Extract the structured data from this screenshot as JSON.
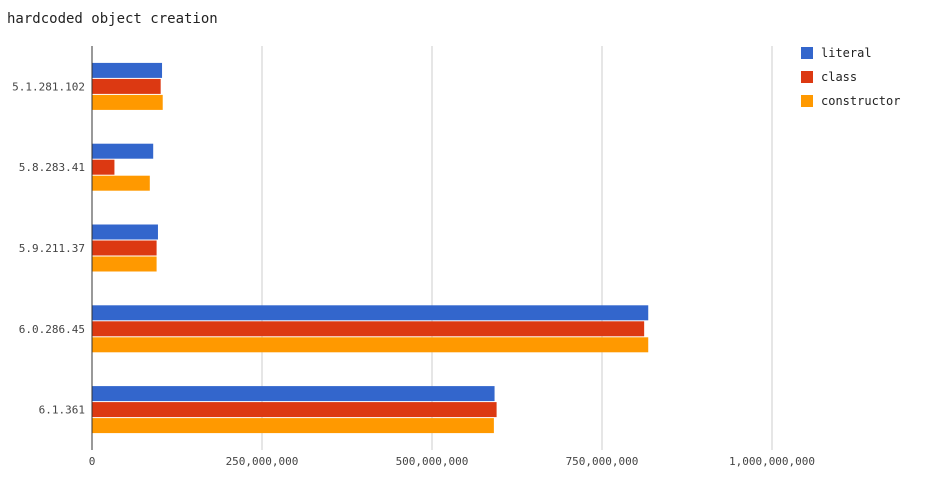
{
  "chart_data": {
    "type": "bar",
    "orientation": "horizontal",
    "title": "hardcoded object creation",
    "categories": [
      "5.1.281.102",
      "5.8.283.41",
      "5.9.211.37",
      "6.0.286.45",
      "6.1.361"
    ],
    "series": [
      {
        "name": "literal",
        "color": "#3366cc",
        "values": [
          103000000,
          90000000,
          97000000,
          818000000,
          592000000
        ]
      },
      {
        "name": "class",
        "color": "#dc3912",
        "values": [
          101000000,
          33000000,
          95000000,
          812000000,
          595000000
        ]
      },
      {
        "name": "constructor",
        "color": "#ff9900",
        "values": [
          104000000,
          85000000,
          95000000,
          818000000,
          591000000
        ]
      }
    ],
    "x_ticks": [
      0,
      250000000,
      500000000,
      750000000,
      1000000000
    ],
    "x_tick_labels": [
      "0",
      "250,000,000",
      "500,000,000",
      "750,000,000",
      "1,000,000,000"
    ],
    "xlim": [
      0,
      1000000000
    ],
    "grid": true,
    "legend_position": "right"
  }
}
